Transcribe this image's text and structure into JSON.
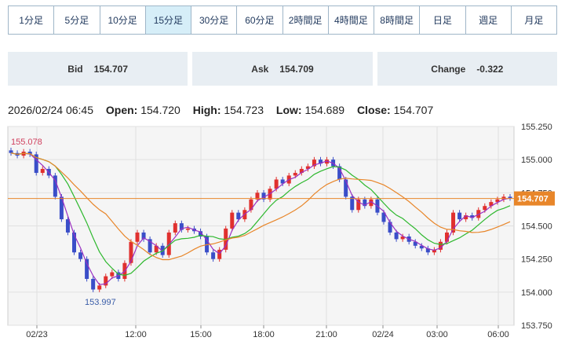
{
  "timeframe_tabs": [
    {
      "label": "1分足",
      "active": false
    },
    {
      "label": "5分足",
      "active": false
    },
    {
      "label": "10分足",
      "active": false
    },
    {
      "label": "15分足",
      "active": true
    },
    {
      "label": "30分足",
      "active": false
    },
    {
      "label": "60分足",
      "active": false
    },
    {
      "label": "2時間足",
      "active": false
    },
    {
      "label": "4時間足",
      "active": false
    },
    {
      "label": "8時間足",
      "active": false
    },
    {
      "label": "日足",
      "active": false
    },
    {
      "label": "週足",
      "active": false
    },
    {
      "label": "月足",
      "active": false
    }
  ],
  "quotes": {
    "bid": {
      "label": "Bid",
      "value": "154.707"
    },
    "ask": {
      "label": "Ask",
      "value": "154.709"
    },
    "change": {
      "label": "Change",
      "value": "-0.322"
    }
  },
  "ohlc_info": {
    "datetime": "2026/02/24 06:45",
    "open_label": "Open:",
    "open": "154.720",
    "high_label": "High:",
    "high": "154.723",
    "low_label": "Low:",
    "low": "154.689",
    "close_label": "Close:",
    "close": "154.707"
  },
  "colors": {
    "up": "#e0302e",
    "down": "#3a4ec8",
    "ma_short": "#9a2fc2",
    "ma_mid": "#2eb82e",
    "ma_long": "#e8862a",
    "current_line": "#e8862a",
    "max_label": "#d0405e",
    "min_label": "#3a5da8",
    "plot_bg": "#f5f5f5"
  },
  "chart_data": {
    "type": "candlestick",
    "ylim": [
      153.75,
      155.25
    ],
    "y_ticks": [
      "155.250",
      "155.000",
      "154.750",
      "154.500",
      "154.250",
      "154.000",
      "153.750"
    ],
    "x_ticks": [
      "02/23",
      "12:00",
      "15:00",
      "18:00",
      "21:00",
      "02/24",
      "03:00",
      "06:00"
    ],
    "current_price": "154.707",
    "max_label": "155.078",
    "min_label": "153.997",
    "grid": true,
    "closes": [
      155.05,
      155.03,
      155.06,
      155.04,
      154.9,
      154.93,
      154.88,
      154.72,
      154.55,
      154.45,
      154.3,
      154.25,
      154.1,
      154.02,
      154.05,
      154.12,
      154.15,
      154.1,
      154.22,
      154.38,
      154.45,
      154.4,
      154.3,
      154.35,
      154.28,
      154.45,
      154.52,
      154.47,
      154.48,
      154.46,
      154.42,
      154.3,
      154.25,
      154.32,
      154.48,
      154.6,
      154.55,
      154.62,
      154.7,
      154.75,
      154.7,
      154.78,
      154.85,
      154.82,
      154.88,
      154.9,
      154.93,
      154.95,
      155.0,
      154.97,
      155.0,
      154.95,
      154.85,
      154.72,
      154.62,
      154.7,
      154.65,
      154.7,
      154.6,
      154.53,
      154.45,
      154.4,
      154.42,
      154.38,
      154.35,
      154.33,
      154.3,
      154.32,
      154.38,
      154.45,
      154.6,
      154.55,
      154.58,
      154.56,
      154.62,
      154.65,
      154.68,
      154.7,
      154.72,
      154.71
    ]
  }
}
